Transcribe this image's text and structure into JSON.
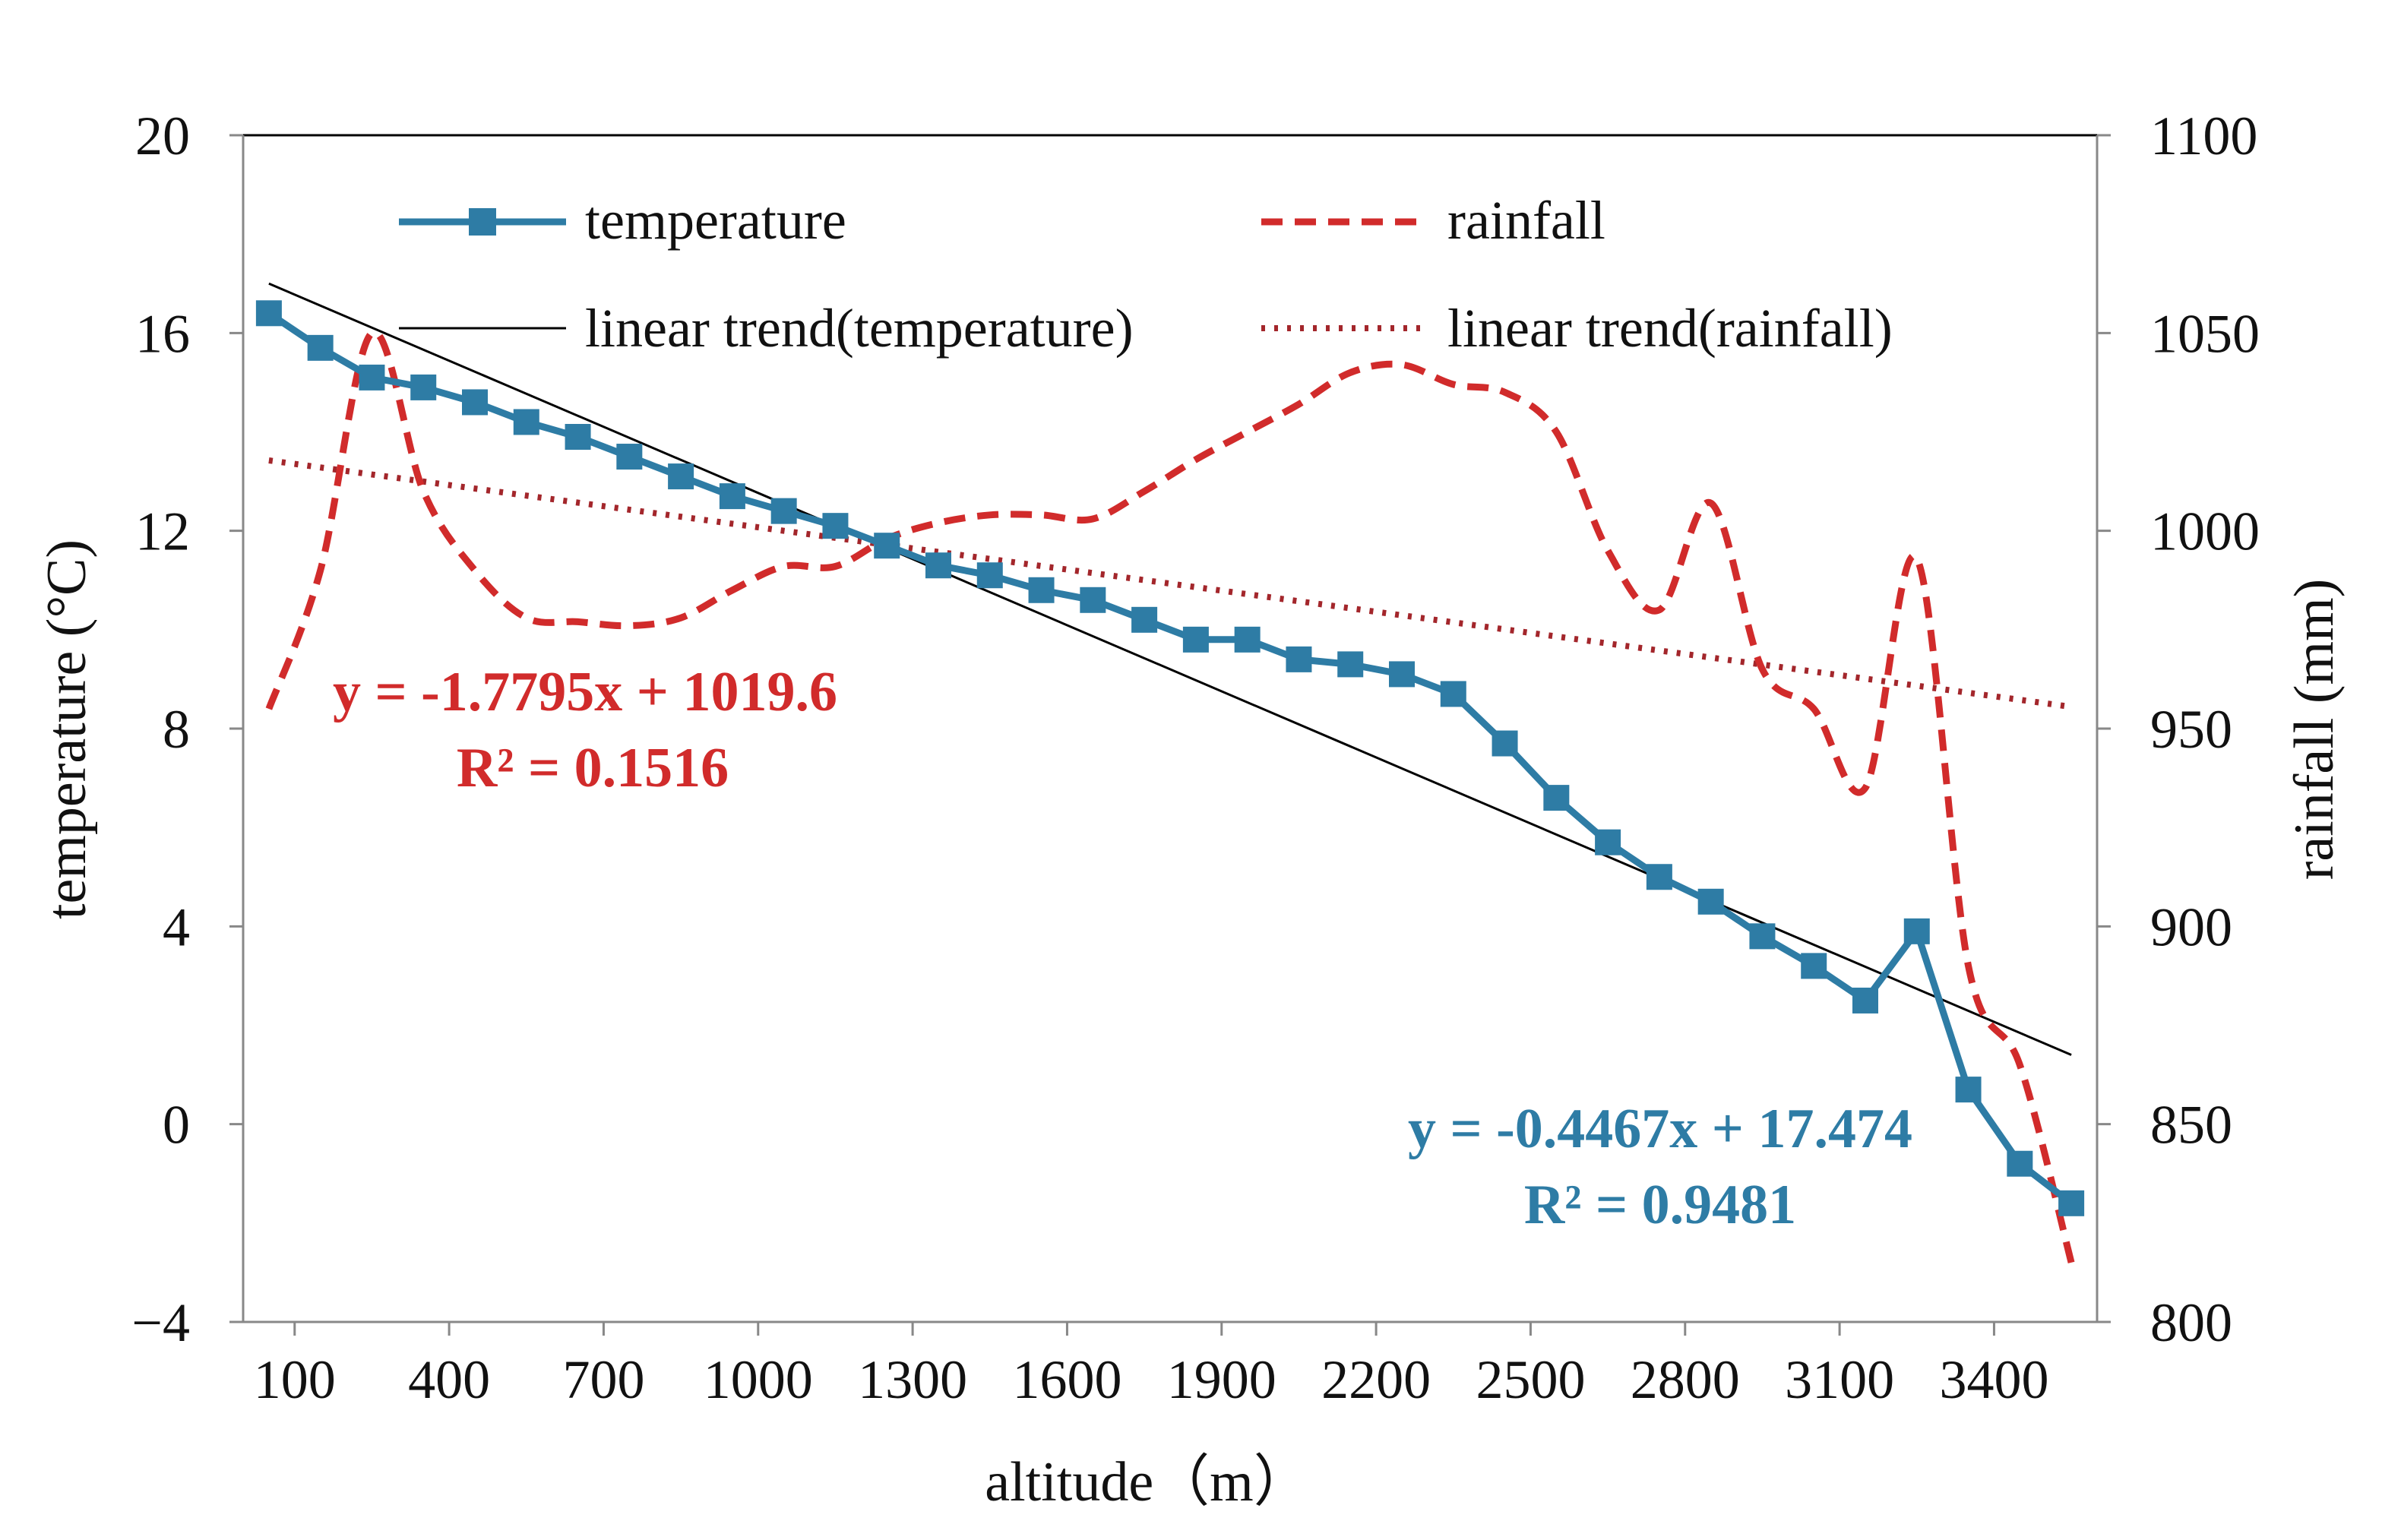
{
  "chart_data": {
    "type": "line",
    "title": "",
    "xlabel": "altitude（m）",
    "ylabel_left": "temperature (°C)",
    "ylabel_right": "rainfall (mm)",
    "x_tick_labels": [
      "100",
      "400",
      "700",
      "1000",
      "1300",
      "1600",
      "1900",
      "2200",
      "2500",
      "2800",
      "3100",
      "3400"
    ],
    "x_ticks": [
      100,
      400,
      700,
      1000,
      1300,
      1600,
      1900,
      2200,
      2500,
      2800,
      3100,
      3400
    ],
    "xlim": [
      0,
      3600
    ],
    "y_left_ticks": [
      -4,
      0,
      4,
      8,
      12,
      16,
      20
    ],
    "y_left_tick_labels": [
      "−4",
      "0",
      "4",
      "8",
      "12",
      "16",
      "20"
    ],
    "ylim_left": [
      -4,
      20
    ],
    "y_right_ticks": [
      800,
      850,
      900,
      950,
      1000,
      1050,
      1100
    ],
    "y_right_tick_labels": [
      "800",
      "850",
      "900",
      "950",
      "1000",
      "1050",
      "1100"
    ],
    "ylim_right": [
      800,
      1100
    ],
    "x": [
      50,
      150,
      250,
      350,
      450,
      550,
      650,
      750,
      850,
      950,
      1050,
      1150,
      1250,
      1350,
      1450,
      1550,
      1650,
      1750,
      1850,
      1950,
      2050,
      2150,
      2250,
      2350,
      2450,
      2550,
      2650,
      2750,
      2850,
      2950,
      3050,
      3150,
      3250,
      3350,
      3450,
      3550
    ],
    "series": [
      {
        "name": "temperature",
        "axis": "left",
        "color": "#2e7ca5",
        "style": "solid-square-markers",
        "values": [
          16.4,
          15.7,
          15.1,
          14.9,
          14.6,
          14.2,
          13.9,
          13.5,
          13.1,
          12.7,
          12.4,
          12.1,
          11.7,
          11.3,
          11.1,
          10.8,
          10.6,
          10.2,
          9.8,
          9.8,
          9.4,
          9.3,
          9.1,
          8.7,
          7.7,
          6.6,
          5.7,
          5.0,
          4.5,
          3.8,
          3.2,
          2.5,
          3.9,
          0.7,
          -0.8,
          -1.6
        ]
      },
      {
        "name": "rainfall",
        "axis": "right",
        "color": "#d12b2b",
        "style": "dashed",
        "values": [
          955,
          990,
          1050,
          1010,
          990,
          978,
          977,
          976,
          978,
          985,
          991,
          991,
          998,
          1002,
          1004,
          1004,
          1003,
          1010,
          1018,
          1025,
          1032,
          1040,
          1042,
          1037,
          1035,
          1025,
          995,
          980,
          1007,
          965,
          955,
          935,
          993,
          890,
          865,
          815
        ]
      },
      {
        "name": "linear trend(temperature)",
        "axis": "left",
        "color": "#000000",
        "style": "thin-solid",
        "x": [
          50,
          3550
        ],
        "values": [
          17.0,
          1.4
        ]
      },
      {
        "name": "linear trend(rainfall)",
        "axis": "right",
        "color": "#a3262b",
        "style": "dotted",
        "x": [
          50,
          3550
        ],
        "values": [
          1017.8,
          955.5
        ]
      }
    ],
    "legend": {
      "placement": "top",
      "entries": [
        "temperature",
        "rainfall",
        "linear trend(temperature)",
        "linear trend(rainfall)"
      ]
    },
    "annotations": [
      {
        "id": "rain-eq",
        "text": "y = -1.7795x + 1019.6",
        "color": "#d12b2b"
      },
      {
        "id": "rain-r2",
        "text": "R² = 0.1516",
        "color": "#d12b2b"
      },
      {
        "id": "temp-eq",
        "text": "y = -0.4467x + 17.474",
        "color": "#2e7ca5"
      },
      {
        "id": "temp-r2",
        "text": "R² = 0.9481",
        "color": "#2e7ca5"
      }
    ]
  }
}
